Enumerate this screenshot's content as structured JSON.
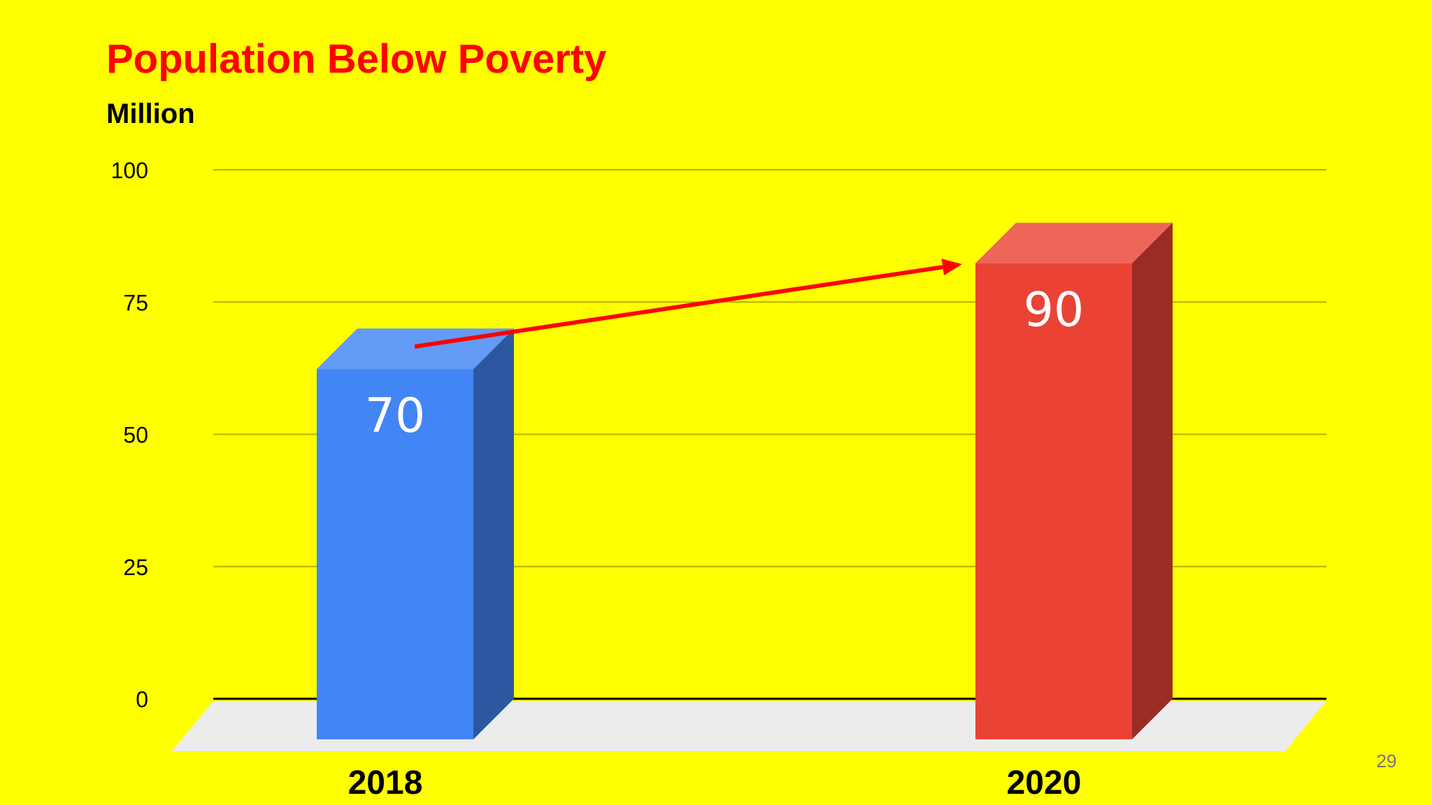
{
  "slide": {
    "background": "#ffff00",
    "page_number": "29"
  },
  "chart_data": {
    "type": "bar",
    "title": "Population Below Poverty",
    "ylabel": "Million",
    "xlabel": "",
    "categories": [
      "2018",
      "2020"
    ],
    "values": [
      70,
      90
    ],
    "data_labels": [
      "70",
      "90"
    ],
    "ylim": [
      0,
      100
    ],
    "yticks": [
      0,
      25,
      50,
      75,
      100
    ],
    "ytick_labels": [
      "0",
      "25",
      "50",
      "75",
      "100"
    ],
    "grid": true,
    "legend": "none",
    "style": "3d-columns",
    "colors": [
      "#4285f4",
      "#ea4335"
    ],
    "title_color": "#ff0000",
    "annotation": {
      "type": "arrow",
      "from_category": "2018",
      "to_category": "2020",
      "color": "#ff0000"
    }
  }
}
